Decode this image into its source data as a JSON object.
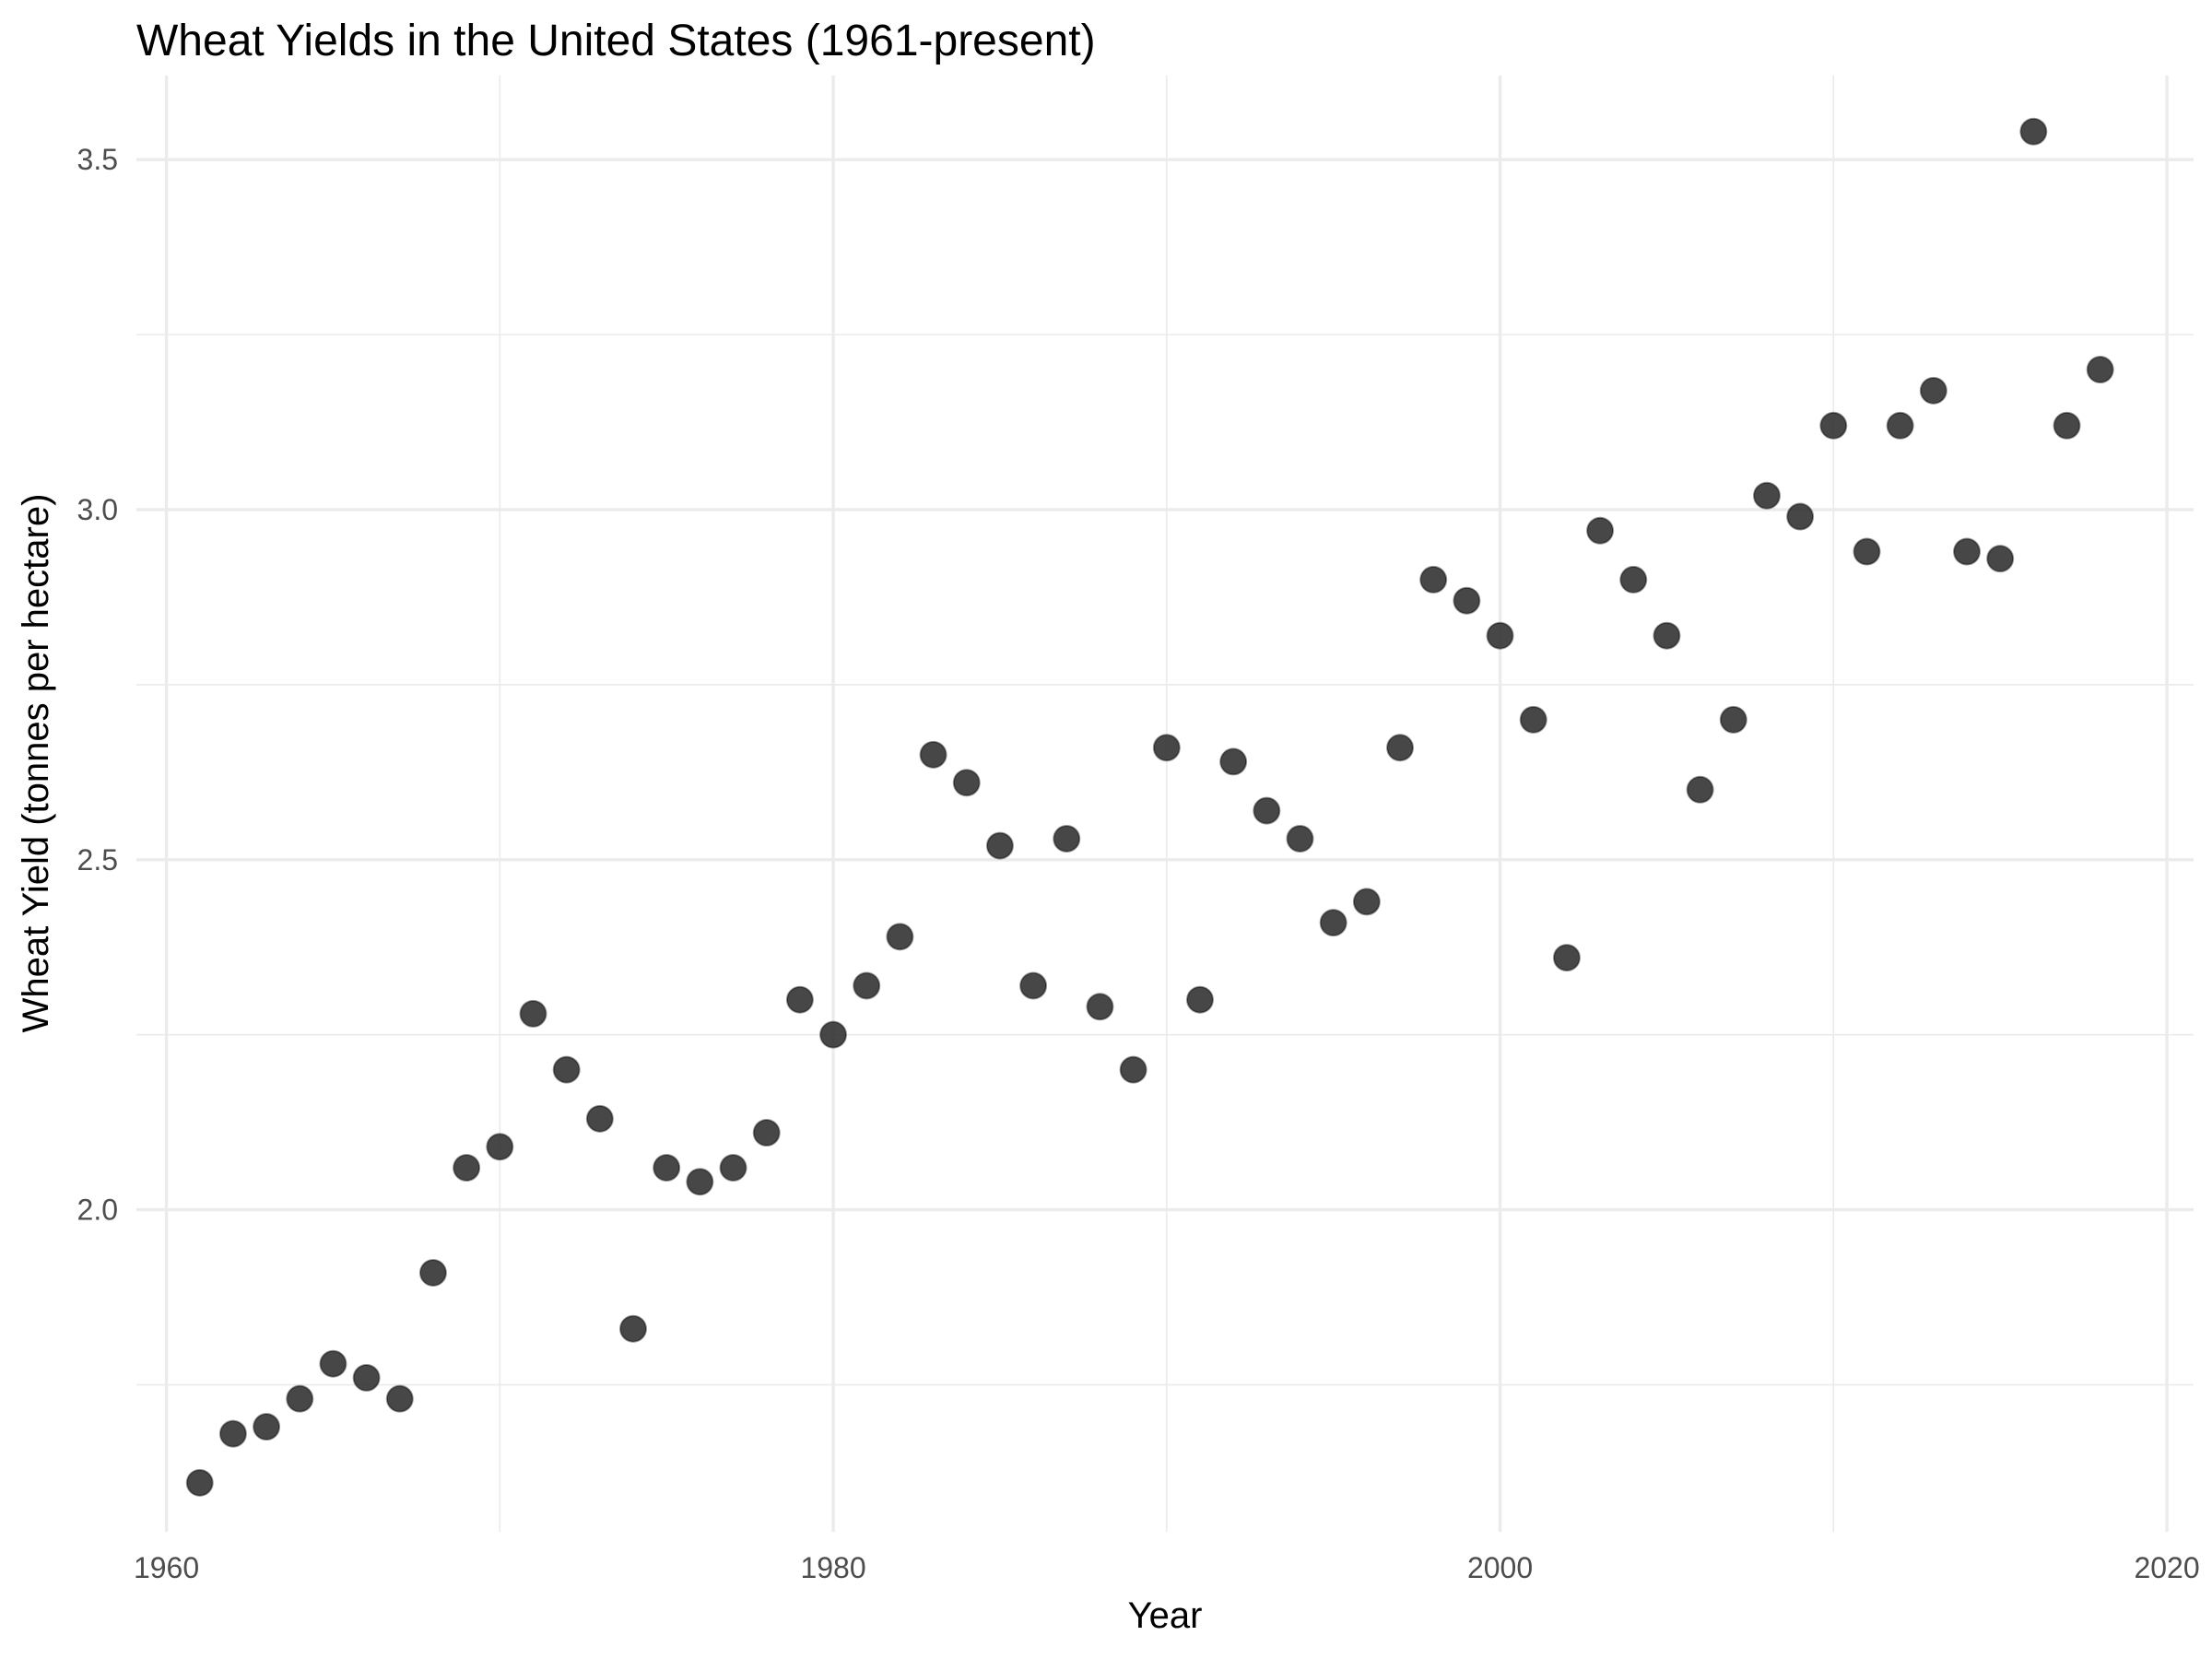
{
  "chart_data": {
    "type": "scatter",
    "title": "Wheat Yields in the United States (1961-present)",
    "xlabel": "Year",
    "ylabel": "Wheat Yield (tonnes per hectare)",
    "xlim": [
      1959.1,
      2020.8
    ],
    "ylim": [
      1.54,
      3.62
    ],
    "x_ticks": [
      1960,
      1980,
      2000,
      2020
    ],
    "x_tick_labels": [
      "1960",
      "1980",
      "2000",
      "2020"
    ],
    "x_minor_ticks": [
      1970,
      1990,
      2010
    ],
    "y_ticks": [
      2.0,
      2.5,
      3.0,
      3.5
    ],
    "y_tick_labels": [
      "2.0",
      "2.5",
      "3.0",
      "3.5"
    ],
    "y_minor_ticks": [
      1.75,
      2.25,
      2.75,
      3.25
    ],
    "grid": true,
    "point_color": "#333333",
    "x": [
      1961,
      1962,
      1963,
      1964,
      1965,
      1966,
      1967,
      1968,
      1969,
      1970,
      1971,
      1972,
      1973,
      1974,
      1975,
      1976,
      1977,
      1978,
      1979,
      1980,
      1981,
      1982,
      1983,
      1984,
      1985,
      1986,
      1987,
      1988,
      1989,
      1990,
      1991,
      1992,
      1993,
      1994,
      1995,
      1996,
      1997,
      1998,
      1999,
      2000,
      2001,
      2002,
      2003,
      2004,
      2005,
      2006,
      2007,
      2008,
      2009,
      2010,
      2011,
      2012,
      2013,
      2014,
      2015,
      2016,
      2017,
      2018
    ],
    "y": [
      1.61,
      1.68,
      1.69,
      1.73,
      1.78,
      1.76,
      1.73,
      1.91,
      2.06,
      2.09,
      2.28,
      2.2,
      2.13,
      1.83,
      2.06,
      2.04,
      2.06,
      2.11,
      2.3,
      2.25,
      2.32,
      2.39,
      2.65,
      2.61,
      2.52,
      2.32,
      2.53,
      2.29,
      2.2,
      2.66,
      2.3,
      2.64,
      2.57,
      2.53,
      2.41,
      2.44,
      2.66,
      2.9,
      2.87,
      2.82,
      2.7,
      2.36,
      2.97,
      2.9,
      2.82,
      2.6,
      2.7,
      3.02,
      2.99,
      3.12,
      2.94,
      3.12,
      3.17,
      2.94,
      2.93,
      3.54,
      3.12,
      3.2
    ]
  }
}
